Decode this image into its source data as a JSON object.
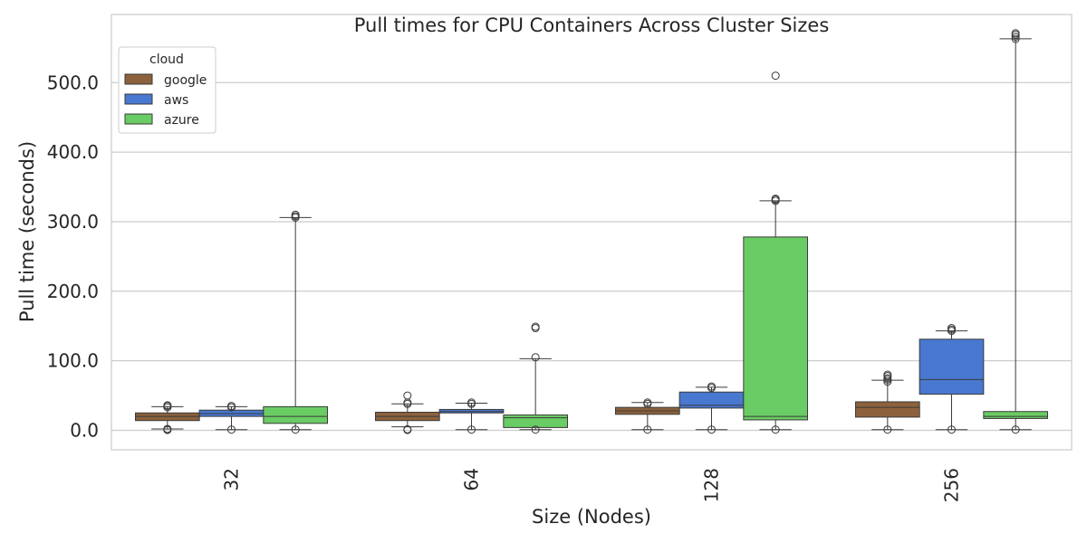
{
  "chart_data": {
    "type": "box",
    "title": "Pull times for CPU Containers Across Cluster Sizes",
    "xlabel": "Size (Nodes)",
    "ylabel": "Pull time (seconds)",
    "categories": [
      "32",
      "64",
      "128",
      "256"
    ],
    "ylim": [
      -28,
      598
    ],
    "yticks": [
      0,
      100,
      200,
      300,
      400,
      500
    ],
    "ytick_labels": [
      "0.0",
      "100.0",
      "200.0",
      "300.0",
      "400.0",
      "500.0"
    ],
    "grid": true,
    "legend": {
      "title": "cloud",
      "placement": "top-left"
    },
    "series": [
      {
        "name": "google",
        "color": "#8c613c",
        "boxes": [
          {
            "whislo": 2,
            "q1": 14,
            "med": 20,
            "q3": 25,
            "whishi": 34,
            "fliers": [
              0.5,
              1.5,
              2,
              33,
              35,
              36
            ]
          },
          {
            "whislo": 5,
            "q1": 14,
            "med": 20,
            "q3": 26,
            "whishi": 38,
            "fliers": [
              0.5,
              1.5,
              38,
              40,
              50
            ]
          },
          {
            "whislo": 1,
            "q1": 23,
            "med": 28,
            "q3": 33,
            "whishi": 40,
            "fliers": [
              1,
              38,
              40
            ]
          },
          {
            "whislo": 1,
            "q1": 19,
            "med": 33,
            "q3": 41,
            "whishi": 72,
            "fliers": [
              1,
              70,
              73,
              75,
              78,
              80
            ]
          }
        ]
      },
      {
        "name": "aws",
        "color": "#4878d0",
        "boxes": [
          {
            "whislo": 1,
            "q1": 20,
            "med": 24,
            "q3": 29,
            "whishi": 34,
            "fliers": [
              1,
              33,
              35
            ]
          },
          {
            "whislo": 1,
            "q1": 25,
            "med": 27,
            "q3": 30,
            "whishi": 39,
            "fliers": [
              1,
              38,
              40
            ]
          },
          {
            "whislo": 1,
            "q1": 32,
            "med": 36,
            "q3": 55,
            "whishi": 62,
            "fliers": [
              1,
              61,
              63
            ]
          },
          {
            "whislo": 1,
            "q1": 52,
            "med": 73,
            "q3": 131,
            "whishi": 143,
            "fliers": [
              1,
              143,
              145,
              147
            ]
          }
        ]
      },
      {
        "name": "azure",
        "color": "#6acc64",
        "boxes": [
          {
            "whislo": 1,
            "q1": 10,
            "med": 20,
            "q3": 34,
            "whishi": 306,
            "fliers": [
              1,
              306,
              308,
              310
            ]
          },
          {
            "whislo": 1,
            "q1": 4,
            "med": 18,
            "q3": 22,
            "whishi": 103,
            "fliers": [
              1,
              105,
              147,
              149
            ]
          },
          {
            "whislo": 1,
            "q1": 15,
            "med": 20,
            "q3": 278,
            "whishi": 330,
            "fliers": [
              1,
              330,
              332,
              333,
              510
            ]
          },
          {
            "whislo": 1,
            "q1": 17,
            "med": 20,
            "q3": 27,
            "whishi": 563,
            "fliers": [
              1,
              563,
              566,
              569,
              571
            ]
          }
        ]
      }
    ]
  }
}
